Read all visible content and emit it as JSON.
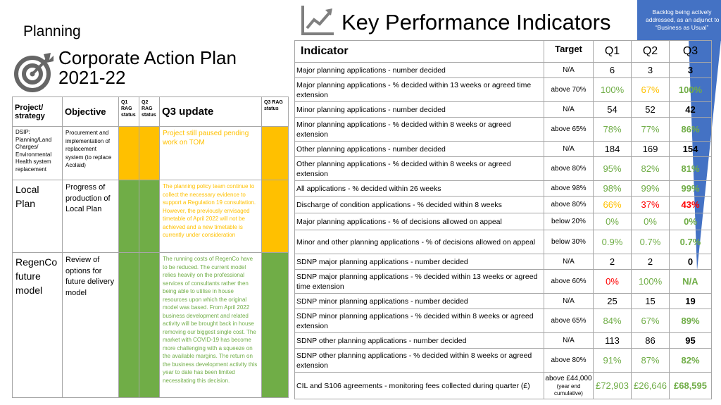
{
  "header": {
    "section": "Planning",
    "title_line1": "Corporate Action Plan",
    "title_line2": "2021-22",
    "kpi_title": "Key Performance Indicators",
    "callout_lines": [
      "Backlog being actively",
      "addressed, as an adjunct to",
      "“Business as Usual”"
    ]
  },
  "left_table": {
    "headers": {
      "project": "Project/ strategy",
      "objective": "Objective",
      "q1_rag": "Q1 RAG status",
      "q2_rag": "Q2 RAG status",
      "q3_update": "Q3 update",
      "q3_rag": "Q3 RAG status"
    },
    "rows": [
      {
        "project": "DSIP: Planning/Land Charges/ Environmental Health system replacement",
        "objective": "Procurement and implementation of replacement system (to replace Acolaid)",
        "q1": "amber",
        "q2": "amber",
        "q3": "amber",
        "update": "Project still paused pending work on TOM"
      },
      {
        "project": "Local Plan",
        "objective": "Progress of production of Local Plan",
        "q1": "green",
        "q2": "green",
        "q3": "amber",
        "update": "The planning policy team continue to collect the necessary evidence to support a Regulation 19 consultation. However, the previously envisaged timetable of April 2022 will not be achieved and a new timetable is currently under consideration"
      },
      {
        "project": "RegenCo future model",
        "objective": "Review of options for future delivery model",
        "q1": "green",
        "q2": "green",
        "q3": "green",
        "update": "The running costs of RegenCo have to be reduced. The current model relies heavily on the professional services of consultants rather then being able to utilise in house resources upon which the original model was based. From April 2022 business development and related activity will be brought back in house removing our biggest single cost. The market with COVID-19 has become more challenging with a squeeze on the available margins. The return on the business development activity this year to date has been limited necessitating this decision."
      }
    ]
  },
  "kpi_table": {
    "headers": {
      "indicator": "Indicator",
      "target": "Target",
      "q1": "Q1",
      "q2": "Q2",
      "q3": "Q3"
    },
    "rows": [
      {
        "indicator": "Major planning applications - number decided",
        "target": "N/A",
        "q1": "6",
        "q1c": "blk",
        "q2": "3",
        "q2c": "blk",
        "q3": "3",
        "q3c": "blk"
      },
      {
        "indicator": "Major planning applications - % decided within 13 weeks or agreed time extension",
        "target": "above 70%",
        "q1": "100%",
        "q1c": "grn",
        "q2": "67%",
        "q2c": "yel",
        "q3": "100%",
        "q3c": "grn"
      },
      {
        "indicator": "Minor planning applications - number decided",
        "target": "N/A",
        "q1": "54",
        "q1c": "blk",
        "q2": "52",
        "q2c": "blk",
        "q3": "42",
        "q3c": "blk"
      },
      {
        "indicator": "Minor planning applications - % decided within 8 weeks or agreed extension",
        "target": "above 65%",
        "q1": "78%",
        "q1c": "grn",
        "q2": "77%",
        "q2c": "grn",
        "q3": "86%",
        "q3c": "grn"
      },
      {
        "indicator": "Other planning applications - number decided",
        "target": "N/A",
        "q1": "184",
        "q1c": "blk",
        "q2": "169",
        "q2c": "blk",
        "q3": "154",
        "q3c": "blk"
      },
      {
        "indicator": "Other planning applications - % decided within 8 weeks or agreed extension",
        "target": "above 80%",
        "q1": "95%",
        "q1c": "grn",
        "q2": "82%",
        "q2c": "grn",
        "q3": "81%",
        "q3c": "grn"
      },
      {
        "indicator": "All applications - % decided within 26 weeks",
        "target": "above 98%",
        "q1": "98%",
        "q1c": "grn",
        "q2": "99%",
        "q2c": "grn",
        "q3": "99%",
        "q3c": "grn"
      },
      {
        "indicator": "Discharge of condition applications - % decided within 8 weeks",
        "target": "above 80%",
        "q1": "66%",
        "q1c": "yel",
        "q2": "37%",
        "q2c": "red",
        "q3": "43%",
        "q3c": "red"
      },
      {
        "indicator": "Major planning applications - % of decisions allowed on appeal",
        "target": "below 20%",
        "q1": "0%",
        "q1c": "grn",
        "q2": "0%",
        "q2c": "grn",
        "q3": "0%",
        "q3c": "grn"
      },
      {
        "indicator": "Minor and other planning applications - % of decisions allowed on appeal",
        "target": "below 30%",
        "q1": "0.9%",
        "q1c": "grn",
        "q2": "0.7%",
        "q2c": "grn",
        "q3": "0.7%",
        "q3c": "grn"
      },
      {
        "indicator": "SDNP major planning applications - number decided",
        "target": "N/A",
        "q1": "2",
        "q1c": "blk",
        "q2": "2",
        "q2c": "blk",
        "q3": "0",
        "q3c": "blk"
      },
      {
        "indicator": "SDNP major planning applications - % decided within 13 weeks or agreed time extension",
        "target": "above 60%",
        "q1": "0%",
        "q1c": "red",
        "q2": "100%",
        "q2c": "grn",
        "q3": "N/A",
        "q3c": "grn"
      },
      {
        "indicator": "SDNP minor planning applications - number decided",
        "target": "N/A",
        "q1": "25",
        "q1c": "blk",
        "q2": "15",
        "q2c": "blk",
        "q3": "19",
        "q3c": "blk"
      },
      {
        "indicator": "SDNP minor planning applications - % decided within 8 weeks or agreed extension",
        "target": "above 65%",
        "q1": "84%",
        "q1c": "grn",
        "q2": "67%",
        "q2c": "grn",
        "q3": "89%",
        "q3c": "grn"
      },
      {
        "indicator": "SDNP other planning applications - number decided",
        "target": "N/A",
        "q1": "113",
        "q1c": "blk",
        "q2": "86",
        "q2c": "blk",
        "q3": "95",
        "q3c": "blk"
      },
      {
        "indicator": "SDNP other planning applications - % decided within 8 weeks or agreed extension",
        "target": "above 80%",
        "q1": "91%",
        "q1c": "grn",
        "q2": "87%",
        "q2c": "grn",
        "q3": "82%",
        "q3c": "grn"
      },
      {
        "indicator": "CIL and S106 agreements - monitoring fees collected during quarter (£)",
        "target": "above £44,000",
        "target_note": "(year end cumulative)",
        "q1": "£72,903",
        "q1c": "grn",
        "q2": "£26,646",
        "q2c": "grn",
        "q3": "£68,595",
        "q3c": "grn"
      }
    ]
  },
  "colors": {
    "amber": "#ffc000",
    "green": "#70ad47",
    "red": "#ff0000",
    "callout": "#4472c4"
  }
}
